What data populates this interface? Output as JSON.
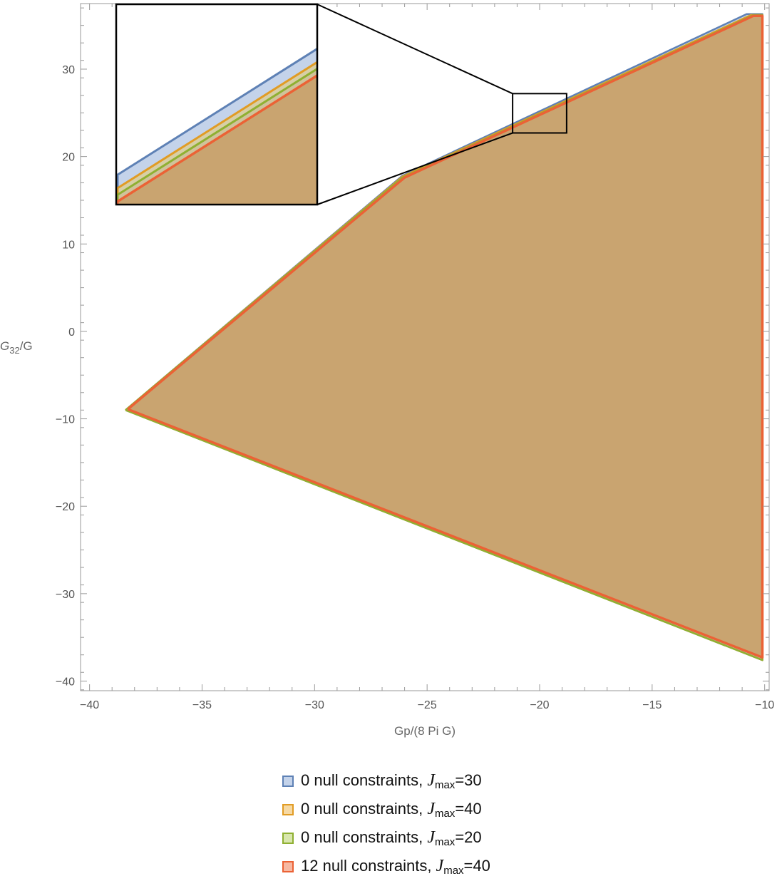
{
  "chart_data": {
    "type": "area",
    "xlabel": "Gp/(8 Pi G)",
    "ylabel": "G32/G",
    "ylabel_parts": {
      "base": "G",
      "sub": "32",
      "rest": "/G"
    },
    "xlim": [
      -40.4,
      -9.8
    ],
    "ylim": [
      -41.1,
      37.5
    ],
    "xticks": [
      -40,
      -35,
      -30,
      -25,
      -20,
      -15,
      -10
    ],
    "yticks": [
      -40,
      -30,
      -20,
      -10,
      0,
      10,
      20,
      30
    ],
    "grid": false,
    "legend_position": "bottom-center",
    "series": [
      {
        "label": {
          "text": "0 null constraints, ",
          "var": "J",
          "sub": "max",
          "tail": "=30"
        },
        "stroke": "#5e81b5",
        "fill": "#c4d3ea",
        "points": [
          [
            -38.4,
            -9.0
          ],
          [
            -26.1,
            17.8
          ],
          [
            -10.8,
            36.3
          ],
          [
            -10.1,
            36.3
          ],
          [
            -10.1,
            -37.6
          ],
          [
            -38.4,
            -9.0
          ]
        ]
      },
      {
        "label": {
          "text": "0 null constraints, ",
          "var": "J",
          "sub": "max",
          "tail": "=40"
        },
        "stroke": "#e19c24",
        "fill": "#f6d9a4",
        "points": [
          [
            -38.4,
            -9.0
          ],
          [
            -26.1,
            17.7
          ],
          [
            -10.6,
            36.2
          ],
          [
            -10.1,
            36.2
          ],
          [
            -10.1,
            -37.6
          ],
          [
            -38.4,
            -9.0
          ]
        ]
      },
      {
        "label": {
          "text": "0 null constraints, ",
          "var": "J",
          "sub": "max",
          "tail": "=20"
        },
        "stroke": "#8fb032",
        "fill": "#d8e6ad",
        "points": [
          [
            -38.4,
            -9.0
          ],
          [
            -26.1,
            17.6
          ],
          [
            -10.5,
            36.2
          ],
          [
            -10.1,
            36.2
          ],
          [
            -10.1,
            -37.6
          ],
          [
            -38.4,
            -9.0
          ]
        ]
      },
      {
        "label": {
          "text": "12 null constraints, ",
          "var": "J",
          "sub": "max",
          "tail": "=40"
        },
        "stroke": "#eb6235",
        "fill": "#f6b8a2",
        "points": [
          [
            -38.3,
            -8.9
          ],
          [
            -26.0,
            17.6
          ],
          [
            -10.5,
            36.1
          ],
          [
            -10.1,
            36.1
          ],
          [
            -10.1,
            -37.3
          ],
          [
            -38.3,
            -8.9
          ]
        ]
      }
    ],
    "overlap_fill": "#c9a470",
    "inset": {
      "source_box": {
        "x": [
          -21.2,
          -18.8
        ],
        "y": [
          22.7,
          27.2
        ]
      },
      "series_lines": [
        {
          "stroke": "#5e81b5",
          "points": [
            [
              -21.2,
              23.35
            ],
            [
              -18.8,
              26.2
            ]
          ]
        },
        {
          "stroke": "#e19c24",
          "points": [
            [
              -21.2,
              23.05
            ],
            [
              -18.8,
              25.9
            ]
          ]
        },
        {
          "stroke": "#8fb032",
          "points": [
            [
              -21.2,
              22.9
            ],
            [
              -18.8,
              25.75
            ]
          ]
        },
        {
          "stroke": "#eb6235",
          "points": [
            [
              -21.2,
              22.75
            ],
            [
              -18.8,
              25.6
            ]
          ]
        }
      ]
    }
  }
}
